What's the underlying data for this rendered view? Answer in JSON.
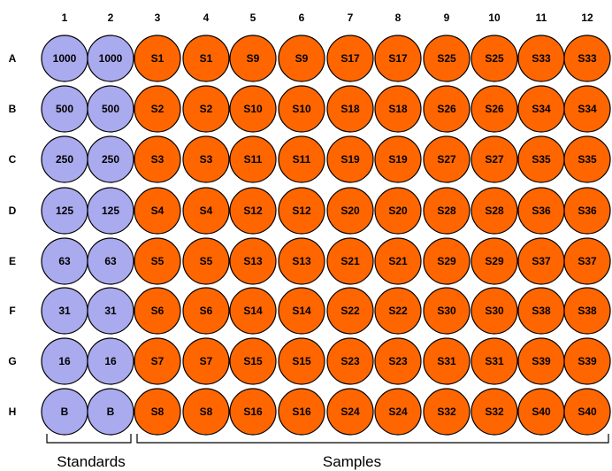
{
  "columns": [
    "1",
    "2",
    "3",
    "4",
    "5",
    "6",
    "7",
    "8",
    "9",
    "10",
    "11",
    "12"
  ],
  "rows": [
    "A",
    "B",
    "C",
    "D",
    "E",
    "F",
    "G",
    "H"
  ],
  "colors": {
    "standard": "#aaaaee",
    "sample": "#ff6600",
    "outline": "#000000"
  },
  "wells": [
    [
      "1000",
      "1000",
      "S1",
      "S1",
      "S9",
      "S9",
      "S17",
      "S17",
      "S25",
      "S25",
      "S33",
      "S33"
    ],
    [
      "500",
      "500",
      "S2",
      "S2",
      "S10",
      "S10",
      "S18",
      "S18",
      "S26",
      "S26",
      "S34",
      "S34"
    ],
    [
      "250",
      "250",
      "S3",
      "S3",
      "S11",
      "S11",
      "S19",
      "S19",
      "S27",
      "S27",
      "S35",
      "S35"
    ],
    [
      "125",
      "125",
      "S4",
      "S4",
      "S12",
      "S12",
      "S20",
      "S20",
      "S28",
      "S28",
      "S36",
      "S36"
    ],
    [
      "63",
      "63",
      "S5",
      "S5",
      "S13",
      "S13",
      "S21",
      "S21",
      "S29",
      "S29",
      "S37",
      "S37"
    ],
    [
      "31",
      "31",
      "S6",
      "S6",
      "S14",
      "S14",
      "S22",
      "S22",
      "S30",
      "S30",
      "S38",
      "S38"
    ],
    [
      "16",
      "16",
      "S7",
      "S7",
      "S15",
      "S15",
      "S23",
      "S23",
      "S31",
      "S31",
      "S39",
      "S39"
    ],
    [
      "B",
      "B",
      "S8",
      "S8",
      "S16",
      "S16",
      "S24",
      "S24",
      "S32",
      "S32",
      "S40",
      "S40"
    ]
  ],
  "groups": {
    "standards_label": "Standards",
    "samples_label": "Samples"
  }
}
